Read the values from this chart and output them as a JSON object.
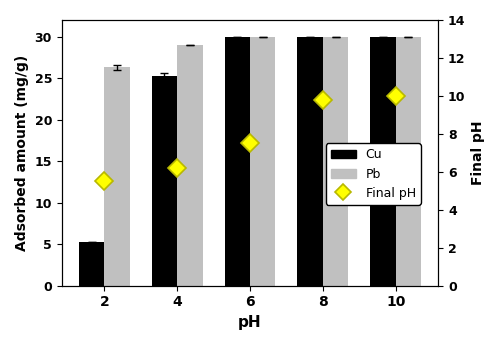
{
  "ph_labels": [
    "2",
    "4",
    "6",
    "8",
    "10"
  ],
  "cu_values": [
    5.3,
    25.3,
    30.0,
    30.0,
    30.0
  ],
  "pb_values": [
    26.3,
    29.0,
    30.0,
    30.0,
    30.0
  ],
  "cu_errors": [
    0.0,
    0.3,
    0.0,
    0.0,
    0.0
  ],
  "pb_errors": [
    0.3,
    0.0,
    0.0,
    0.0,
    0.0
  ],
  "final_ph": [
    5.5,
    6.2,
    7.5,
    9.8,
    10.0
  ],
  "cu_color": "#000000",
  "pb_color": "#c0c0c0",
  "diamond_color": "#ffff00",
  "diamond_edge_color": "#b8b800",
  "bar_width": 0.35,
  "ylim_left": [
    0,
    32
  ],
  "ylim_right": [
    0,
    14
  ],
  "yticks_left": [
    0,
    5,
    10,
    15,
    20,
    25,
    30
  ],
  "yticks_right": [
    0,
    2,
    4,
    6,
    8,
    10,
    12,
    14
  ],
  "xlabel": "pH",
  "ylabel_left": "Adsorbed amount (mg/g)",
  "ylabel_right": "Final pH",
  "legend_labels": [
    "Cu",
    "Pb",
    "Final pH"
  ],
  "title": ""
}
